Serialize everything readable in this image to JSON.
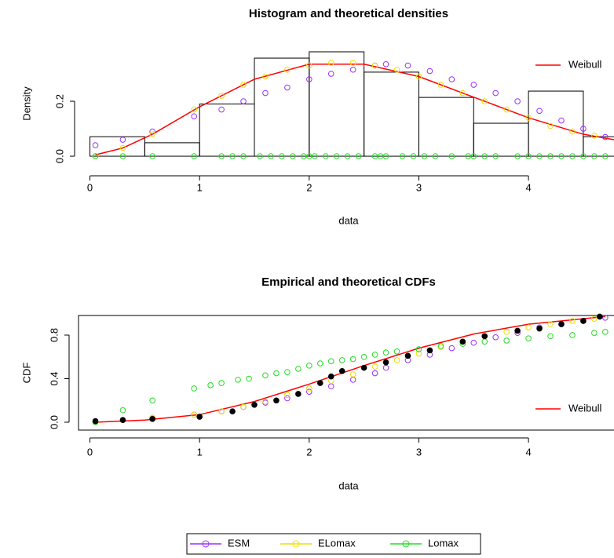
{
  "chart_data": [
    {
      "type": "histogram",
      "title": "Histogram and theoretical densities",
      "x_label": "data",
      "y_label": "Density",
      "bins": [
        0,
        0.5,
        1,
        1.5,
        2,
        2.5,
        3,
        3.5,
        4,
        4.5,
        5
      ],
      "values": [
        0.071,
        0.049,
        0.19,
        0.357,
        0.38,
        0.306,
        0.214,
        0.12,
        0.237,
        0.071
      ],
      "color": "#000000",
      "xlim": [
        -0.14,
        4.78
      ],
      "xticks": [
        0,
        1,
        2,
        3,
        4
      ],
      "ylim": [
        -0.017,
        0.4
      ],
      "yticks": [
        {
          "value": 0,
          "label": "0.0"
        },
        {
          "value": 0.2,
          "label": "0.2"
        }
      ],
      "legend": "top-right",
      "series": [
        {
          "name": "Weibull",
          "color": "#ff0000",
          "mark": "line",
          "x": [
            0.05,
            0.3,
            0.57,
            1,
            1.5,
            2,
            2.5,
            3,
            3.5,
            4,
            4.5,
            4.78
          ],
          "values": [
            0.005,
            0.03,
            0.08,
            0.18,
            0.28,
            0.335,
            0.335,
            0.29,
            0.215,
            0.14,
            0.08,
            0.06
          ]
        },
        {
          "name": "ESM",
          "color": "#9b30ff",
          "mark": "points",
          "x": [
            0.05,
            0.3,
            0.57,
            0.95,
            1.2,
            1.4,
            1.6,
            1.8,
            2.0,
            2.2,
            2.4,
            2.6,
            2.7,
            2.9,
            3.1,
            3.3,
            3.5,
            3.7,
            3.9,
            4.1,
            4.3,
            4.5,
            4.7
          ],
          "values": [
            0.04,
            0.06,
            0.09,
            0.145,
            0.17,
            0.2,
            0.23,
            0.25,
            0.28,
            0.3,
            0.315,
            0.33,
            0.335,
            0.33,
            0.31,
            0.28,
            0.26,
            0.23,
            0.2,
            0.165,
            0.13,
            0.1,
            0.07
          ]
        },
        {
          "name": "ELomax",
          "color": "#eedd00",
          "mark": "points",
          "x": [
            0.05,
            0.3,
            0.57,
            0.95,
            1.2,
            1.4,
            1.6,
            1.8,
            2.0,
            2.2,
            2.4,
            2.6,
            2.8,
            3.0,
            3.2,
            3.4,
            3.6,
            3.8,
            4.0,
            4.2,
            4.4,
            4.6
          ],
          "values": [
            0.0,
            0.03,
            0.08,
            0.17,
            0.22,
            0.26,
            0.29,
            0.315,
            0.33,
            0.34,
            0.34,
            0.33,
            0.315,
            0.29,
            0.26,
            0.23,
            0.2,
            0.17,
            0.14,
            0.11,
            0.09,
            0.075
          ]
        },
        {
          "name": "Lomax",
          "color": "#22dd22",
          "mark": "points",
          "x": [
            0.05,
            0.3,
            0.57,
            0.95,
            1.2,
            1.3,
            1.4,
            1.55,
            1.65,
            1.75,
            1.85,
            1.95,
            2.0,
            2.05,
            2.15,
            2.25,
            2.35,
            2.45,
            2.6,
            2.65,
            2.7,
            2.85,
            2.95,
            3.05,
            3.15,
            3.3,
            3.45,
            3.5,
            3.6,
            3.7,
            3.9,
            4.0,
            4.1,
            4.2,
            4.3,
            4.4,
            4.5,
            4.6,
            4.7
          ],
          "values": [
            0,
            0,
            0,
            0,
            0,
            0,
            0,
            0,
            0,
            0,
            0,
            0,
            0,
            0,
            0,
            0,
            0,
            0,
            0,
            0,
            0,
            0,
            0,
            0,
            0,
            0,
            0,
            0,
            0,
            0,
            0,
            0,
            0,
            0,
            0,
            0,
            0,
            0,
            0
          ]
        }
      ]
    },
    {
      "type": "cdf",
      "title": "Empirical and theoretical CDFs",
      "x_label": "data",
      "y_label": "CDF",
      "xlim": [
        -0.14,
        4.78
      ],
      "xticks": [
        0,
        1,
        2,
        3,
        4
      ],
      "ylim": [
        -0.072,
        0.98
      ],
      "yticks": [
        {
          "value": 0,
          "label": "0.0"
        },
        {
          "value": 0.4,
          "label": "0.4"
        },
        {
          "value": 0.8,
          "label": "0.8"
        }
      ],
      "legend": "bottom-right",
      "series": [
        {
          "name": "Weibull",
          "color": "#ff0000",
          "mark": "line",
          "x": [
            0.05,
            0.5,
            1,
            1.5,
            2,
            2.5,
            3,
            3.5,
            4,
            4.5,
            4.7
          ],
          "values": [
            0.0,
            0.02,
            0.07,
            0.19,
            0.35,
            0.52,
            0.68,
            0.81,
            0.9,
            0.95,
            0.97
          ]
        },
        {
          "color": "#9b30ff",
          "mark": "points",
          "x": [
            0.05,
            0.3,
            0.57,
            0.95,
            1.2,
            1.4,
            1.6,
            1.8,
            2.0,
            2.2,
            2.4,
            2.6,
            2.7,
            2.9,
            3.1,
            3.3,
            3.5,
            3.7,
            3.9,
            4.1,
            4.3,
            4.5,
            4.7
          ],
          "values": [
            0.01,
            0.02,
            0.04,
            0.07,
            0.1,
            0.14,
            0.18,
            0.22,
            0.28,
            0.33,
            0.39,
            0.45,
            0.5,
            0.57,
            0.62,
            0.68,
            0.73,
            0.78,
            0.82,
            0.87,
            0.9,
            0.93,
            0.96
          ]
        },
        {
          "color": "#eedd00",
          "mark": "points",
          "x": [
            0.05,
            0.3,
            0.57,
            0.95,
            1.2,
            1.4,
            1.6,
            1.8,
            2.0,
            2.2,
            2.4,
            2.6,
            2.8,
            3.0,
            3.2,
            3.4,
            3.6,
            3.8,
            4.0,
            4.2,
            4.4,
            4.6
          ],
          "values": [
            0.0,
            0.02,
            0.04,
            0.07,
            0.1,
            0.14,
            0.19,
            0.25,
            0.31,
            0.38,
            0.44,
            0.51,
            0.57,
            0.63,
            0.69,
            0.74,
            0.79,
            0.83,
            0.87,
            0.9,
            0.93,
            0.95
          ]
        },
        {
          "color": "#22dd22",
          "mark": "points",
          "x": [
            0.05,
            0.3,
            0.57,
            0.95,
            1.1,
            1.2,
            1.35,
            1.45,
            1.6,
            1.7,
            1.8,
            1.9,
            2.0,
            2.1,
            2.2,
            2.3,
            2.4,
            2.5,
            2.6,
            2.7,
            2.8,
            3.0,
            3.2,
            3.4,
            3.6,
            3.8,
            4.0,
            4.2,
            4.4,
            4.6,
            4.7
          ],
          "values": [
            0.0,
            0.11,
            0.2,
            0.31,
            0.34,
            0.36,
            0.39,
            0.4,
            0.43,
            0.45,
            0.46,
            0.49,
            0.52,
            0.54,
            0.56,
            0.57,
            0.58,
            0.6,
            0.62,
            0.64,
            0.65,
            0.67,
            0.7,
            0.72,
            0.74,
            0.75,
            0.77,
            0.79,
            0.8,
            0.82,
            0.83
          ]
        },
        {
          "color": "#000000",
          "mark": "filled",
          "x": [
            0.05,
            0.3,
            0.57,
            1.0,
            1.3,
            1.5,
            1.7,
            1.9,
            2.1,
            2.2,
            2.3,
            2.5,
            2.7,
            2.9,
            3.1,
            3.4,
            3.6,
            3.9,
            4.1,
            4.3,
            4.5,
            4.65
          ],
          "values": [
            0.01,
            0.02,
            0.03,
            0.05,
            0.1,
            0.16,
            0.2,
            0.26,
            0.36,
            0.42,
            0.47,
            0.5,
            0.55,
            0.61,
            0.66,
            0.74,
            0.79,
            0.84,
            0.86,
            0.9,
            0.93,
            0.97
          ]
        }
      ]
    }
  ]
}
